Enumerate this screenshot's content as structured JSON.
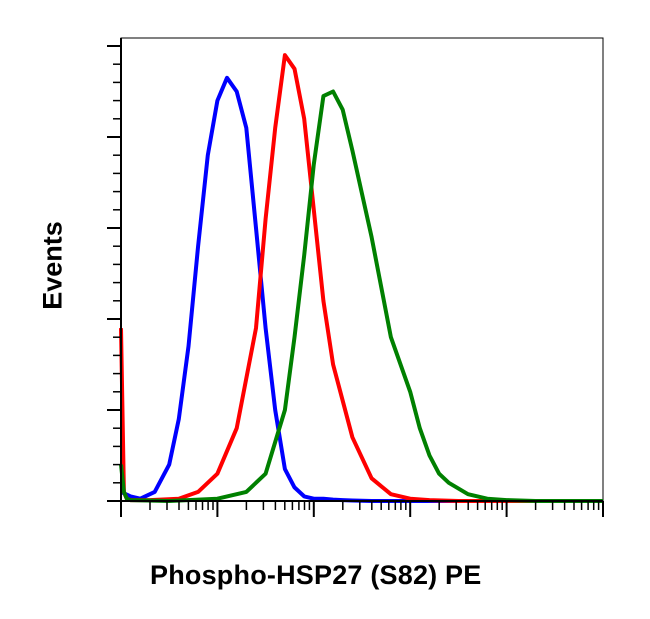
{
  "chart_data": {
    "type": "line",
    "title": "",
    "xlabel": "Phospho-HSP27 (S82) PE",
    "ylabel": "Events",
    "x_scale": "log",
    "xlim": [
      0,
      5
    ],
    "ylim": [
      0,
      100
    ],
    "grid": false,
    "legend": "none",
    "series": [
      {
        "color": "#0000ff",
        "x": [
          0.0,
          0.1,
          0.2,
          0.35,
          0.5,
          0.6,
          0.7,
          0.8,
          0.9,
          1.0,
          1.1,
          1.2,
          1.3,
          1.4,
          1.5,
          1.6,
          1.7,
          1.8,
          1.9,
          2.0,
          2.1,
          2.2,
          2.3,
          2.4,
          2.6,
          2.8,
          3.2,
          4.0,
          5.0
        ],
        "y": [
          2,
          1,
          0.5,
          2,
          8,
          18,
          34,
          56,
          76,
          88,
          93,
          90,
          82,
          60,
          38,
          20,
          7,
          3,
          1,
          0.5,
          0.5,
          0.3,
          0.2,
          0.1,
          0,
          0,
          0,
          0,
          0
        ]
      },
      {
        "color": "#ff0000",
        "x": [
          0.0,
          0.03,
          0.06,
          0.1,
          0.3,
          0.6,
          0.8,
          1.0,
          1.2,
          1.4,
          1.5,
          1.6,
          1.7,
          1.8,
          1.9,
          2.0,
          2.1,
          2.2,
          2.4,
          2.6,
          2.8,
          3.0,
          3.2,
          3.5,
          4.0,
          5.0
        ],
        "y": [
          38,
          2,
          0.5,
          0.2,
          0.2,
          0.5,
          2,
          6,
          16,
          38,
          62,
          82,
          98,
          95,
          84,
          64,
          44,
          30,
          14,
          5,
          1.5,
          0.5,
          0.2,
          0,
          0,
          0
        ]
      },
      {
        "color": "#008000",
        "x": [
          0.0,
          0.03,
          0.06,
          0.1,
          0.5,
          1.0,
          1.3,
          1.5,
          1.7,
          1.8,
          1.9,
          2.0,
          2.1,
          2.2,
          2.3,
          2.4,
          2.6,
          2.8,
          3.0,
          3.1,
          3.2,
          3.3,
          3.4,
          3.6,
          3.8,
          4.0,
          4.3,
          5.0
        ],
        "y": [
          8,
          2,
          0.5,
          0.2,
          0,
          0.5,
          2,
          6,
          20,
          36,
          54,
          74,
          89,
          90,
          86,
          77,
          58,
          36,
          24,
          16,
          10,
          6,
          4,
          1.5,
          0.5,
          0.2,
          0,
          0
        ]
      }
    ]
  }
}
